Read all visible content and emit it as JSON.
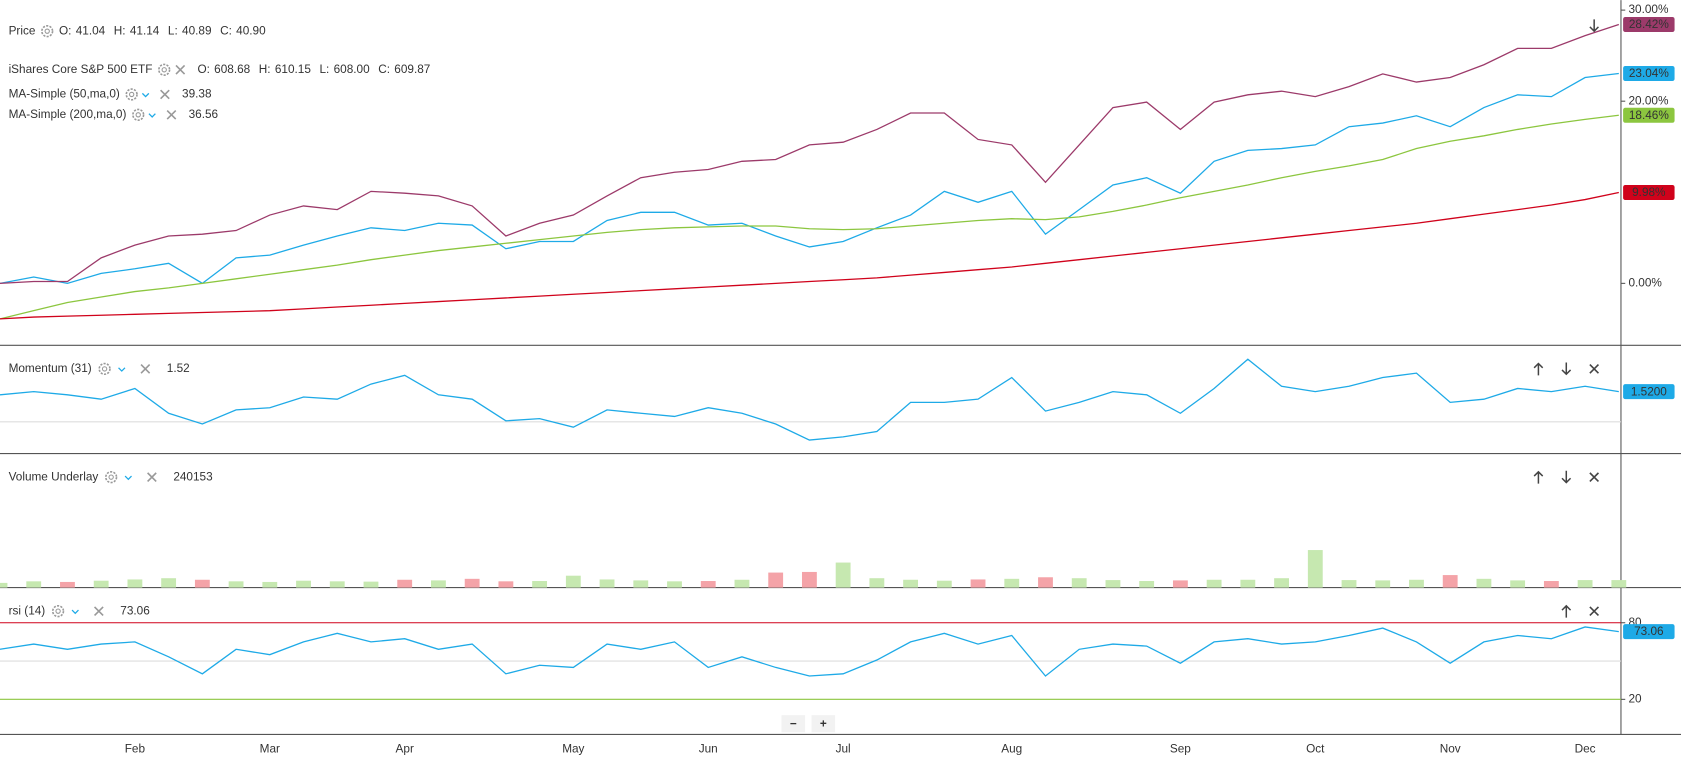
{
  "chart_data": [
    {
      "type": "line",
      "categories": [
        null,
        null,
        null,
        null,
        "Feb",
        null,
        null,
        null,
        "Mar",
        null,
        null,
        null,
        "Apr",
        null,
        null,
        null,
        null,
        "May",
        null,
        null,
        null,
        "Jun",
        null,
        null,
        null,
        "Jul",
        null,
        null,
        null,
        null,
        "Aug",
        null,
        null,
        null,
        null,
        "Sep",
        null,
        null,
        null,
        "Oct",
        null,
        null,
        null,
        "Nov",
        null,
        null,
        null,
        "Dec",
        null
      ],
      "ylim": [
        -6.8,
        31.1
      ],
      "yticks": [
        {
          "value": 30,
          "label": "30.00%"
        },
        {
          "value": 20,
          "label": "20.00%"
        },
        {
          "value": 0,
          "label": "0.00%"
        }
      ],
      "series": [
        {
          "name": "Price",
          "color": "#1eaae7",
          "readout": [
            {
              "key": "O:",
              "value": "41.04"
            },
            {
              "key": "H:",
              "value": "41.14"
            },
            {
              "key": "L:",
              "value": "40.89"
            },
            {
              "key": "C:",
              "value": "40.90"
            }
          ],
          "values": [
            0,
            0.7,
            0,
            1.1,
            1.6,
            2.2,
            0,
            2.8,
            3.1,
            4.2,
            5.2,
            6.1,
            5.8,
            6.6,
            6.4,
            3.8,
            4.6,
            4.6,
            6.9,
            7.8,
            7.8,
            6.4,
            6.6,
            5.2,
            4.0,
            4.6,
            6.1,
            7.5,
            10.1,
            8.9,
            10.1,
            5.4,
            8.1,
            10.8,
            11.6,
            9.9,
            13.4,
            14.6,
            14.8,
            15.2,
            17.2,
            17.6,
            18.4,
            17.2,
            19.3,
            20.7,
            20.5,
            22.6,
            23.04
          ],
          "end_label": "23.04%"
        },
        {
          "name": "iShares Core S&P 500 ETF",
          "color": "#9c3a6a",
          "readout": [
            {
              "key": "O:",
              "value": "608.68"
            },
            {
              "key": "H:",
              "value": "610.15"
            },
            {
              "key": "L:",
              "value": "608.00"
            },
            {
              "key": "C:",
              "value": "609.87"
            }
          ],
          "values": [
            0,
            0.2,
            0.2,
            2.8,
            4.2,
            5.2,
            5.4,
            5.8,
            7.5,
            8.5,
            8.1,
            10.1,
            9.9,
            9.6,
            8.5,
            5.2,
            6.6,
            7.5,
            9.6,
            11.6,
            12.2,
            12.5,
            13.4,
            13.6,
            15.2,
            15.5,
            16.9,
            18.7,
            18.7,
            15.8,
            15.2,
            11.1,
            15.2,
            19.3,
            19.9,
            16.9,
            19.9,
            20.7,
            21.1,
            20.5,
            21.6,
            23,
            22.1,
            22.6,
            24,
            25.8,
            25.8,
            27.2,
            28.42
          ],
          "end_label": "28.42%"
        },
        {
          "name": "MA-Simple (50,ma,0)",
          "color": "#8cc63f",
          "readout": [
            {
              "value": "39.38"
            }
          ],
          "values": [
            -3.9,
            -3.0,
            -2.1,
            -1.5,
            -0.9,
            -0.5,
            0,
            0.5,
            1.0,
            1.5,
            2.0,
            2.6,
            3.1,
            3.6,
            4.0,
            4.4,
            4.8,
            5.2,
            5.6,
            5.9,
            6.1,
            6.2,
            6.3,
            6.3,
            6.0,
            5.9,
            6.0,
            6.3,
            6.6,
            6.9,
            7.1,
            7.0,
            7.3,
            7.9,
            8.6,
            9.4,
            10.1,
            10.8,
            11.6,
            12.3,
            12.9,
            13.6,
            14.8,
            15.6,
            16.2,
            16.9,
            17.5,
            18.0,
            18.46
          ],
          "end_label": "18.46%"
        },
        {
          "name": "MA-Simple (200,ma,0)",
          "color": "#d0021b",
          "readout": [
            {
              "value": "36.56"
            }
          ],
          "values": [
            -3.9,
            -3.7,
            -3.6,
            -3.5,
            -3.4,
            -3.3,
            -3.2,
            -3.1,
            -3.0,
            -2.8,
            -2.6,
            -2.4,
            -2.2,
            -2.0,
            -1.8,
            -1.6,
            -1.4,
            -1.2,
            -1.0,
            -0.8,
            -0.6,
            -0.4,
            -0.2,
            0.0,
            0.2,
            0.4,
            0.6,
            0.9,
            1.2,
            1.5,
            1.8,
            2.2,
            2.6,
            3.0,
            3.4,
            3.8,
            4.2,
            4.6,
            5.0,
            5.4,
            5.8,
            6.2,
            6.6,
            7.1,
            7.6,
            8.1,
            8.6,
            9.2,
            9.98
          ],
          "end_label": "9.98%"
        }
      ]
    },
    {
      "type": "line",
      "title": "Momentum (31)",
      "readout": "1.52",
      "ylim": [
        -1.6,
        3.8
      ],
      "baseline": 0,
      "series": [
        {
          "color": "#1eaae7",
          "values": [
            1.36,
            1.52,
            1.36,
            1.14,
            1.68,
            0.43,
            -0.11,
            0.6,
            0.71,
            1.25,
            1.14,
            1.9,
            2.34,
            1.36,
            1.14,
            0.05,
            0.16,
            -0.27,
            0.6,
            0.43,
            0.27,
            0.71,
            0.43,
            -0.11,
            -0.92,
            -0.76,
            -0.49,
            0.98,
            0.98,
            1.14,
            2.23,
            0.54,
            0.98,
            1.52,
            1.36,
            0.43,
            1.68,
            3.15,
            1.79,
            1.52,
            1.79,
            2.23,
            2.45,
            0.98,
            1.14,
            1.68,
            1.52,
            1.79,
            1.52
          ],
          "end_label": "1.5200"
        }
      ]
    },
    {
      "type": "bar",
      "title": "Volume Underlay",
      "readout": "240153",
      "ylim": [
        0,
        4250000
      ],
      "up_color": "#c6e8b0",
      "down_color": "#f4a3a8",
      "values": [
        150000,
        200000,
        180000,
        220000,
        260000,
        300000,
        250000,
        200000,
        180000,
        220000,
        200000,
        190000,
        250000,
        230000,
        280000,
        200000,
        210000,
        380000,
        260000,
        230000,
        200000,
        210000,
        250000,
        480000,
        500000,
        800000,
        300000,
        250000,
        220000,
        260000,
        280000,
        330000,
        300000,
        240000,
        210000,
        230000,
        250000,
        250000,
        300000,
        1200000,
        240000,
        230000,
        250000,
        400000,
        280000,
        230000,
        210000,
        240000,
        240153
      ]
    },
    {
      "type": "line",
      "title": "rsi (14)",
      "readout": "73.06",
      "ylim": [
        -7.5,
        106.7
      ],
      "yticks": [
        80,
        20
      ],
      "levels": [
        {
          "value": 80,
          "color": "#d0021b"
        },
        {
          "value": 50,
          "color": "#dddddd"
        },
        {
          "value": 20,
          "color": "#8cc63f"
        }
      ],
      "series": [
        {
          "color": "#1eaae7",
          "values": [
            59.2,
            63.3,
            59.2,
            63.3,
            65,
            53.3,
            40,
            59.2,
            55,
            65,
            71.7,
            65,
            67.5,
            59.2,
            63.3,
            40,
            46.7,
            45,
            63.3,
            59.2,
            65,
            45,
            53.3,
            45,
            38.3,
            40,
            50.8,
            65,
            71.7,
            63.3,
            70,
            38.3,
            59.2,
            63.3,
            61.7,
            48.3,
            65,
            67.5,
            63.3,
            65,
            70,
            75.8,
            65,
            48.3,
            65,
            70,
            67.5,
            76.7,
            73.06
          ],
          "end_label": "73.06"
        }
      ]
    }
  ],
  "zoom_buttons": [
    "−",
    "+"
  ]
}
